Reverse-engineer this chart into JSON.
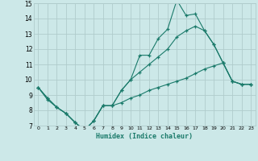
{
  "title": "",
  "xlabel": "Humidex (Indice chaleur)",
  "bg_color": "#cce8e8",
  "grid_color": "#b0cccc",
  "line_color": "#1a7a6a",
  "xlim": [
    -0.5,
    23.5
  ],
  "ylim": [
    7,
    15
  ],
  "xticks": [
    0,
    1,
    2,
    3,
    4,
    5,
    6,
    7,
    8,
    9,
    10,
    11,
    12,
    13,
    14,
    15,
    16,
    17,
    18,
    19,
    20,
    21,
    22,
    23
  ],
  "yticks": [
    7,
    8,
    9,
    10,
    11,
    12,
    13,
    14,
    15
  ],
  "series_max": [
    9.5,
    8.8,
    8.2,
    7.8,
    7.2,
    6.7,
    7.3,
    8.3,
    8.3,
    9.3,
    10.0,
    11.6,
    11.6,
    12.7,
    13.3,
    15.2,
    14.2,
    14.3,
    13.2,
    12.3,
    11.1,
    9.9,
    9.7,
    9.7
  ],
  "series_mid": [
    9.5,
    8.8,
    8.2,
    7.8,
    7.2,
    6.7,
    7.3,
    8.3,
    8.3,
    9.3,
    10.0,
    10.5,
    11.0,
    11.5,
    12.0,
    12.8,
    13.2,
    13.5,
    13.2,
    12.3,
    11.1,
    9.9,
    9.7,
    9.7
  ],
  "series_min": [
    9.5,
    8.7,
    8.2,
    7.8,
    7.2,
    6.7,
    7.3,
    8.3,
    8.3,
    8.5,
    8.8,
    9.0,
    9.3,
    9.5,
    9.7,
    9.9,
    10.1,
    10.4,
    10.7,
    10.9,
    11.1,
    9.9,
    9.7,
    9.7
  ]
}
